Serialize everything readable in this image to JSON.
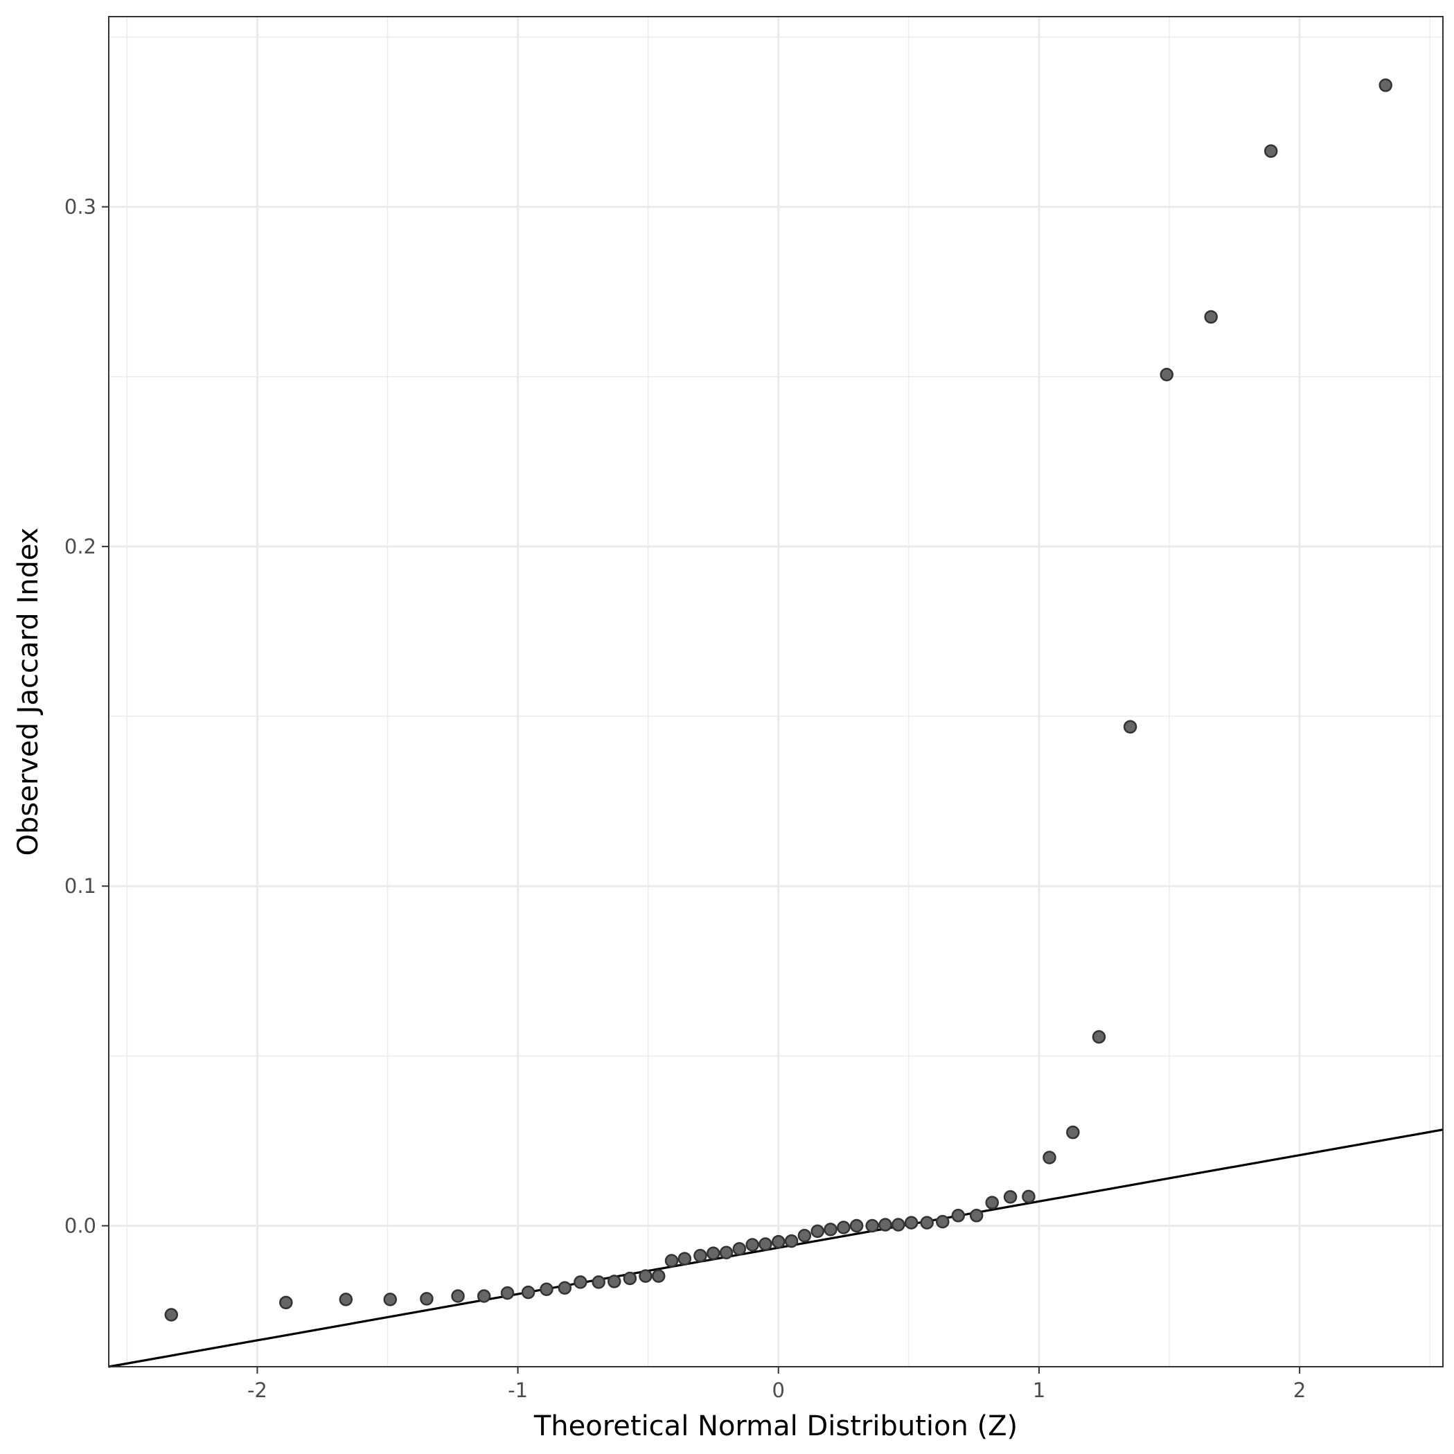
{
  "chart_data": {
    "type": "scatter",
    "title": "",
    "xlabel": "Theoretical Normal Distribution (Z)",
    "ylabel": "Observed Jaccard Index",
    "xlim": [
      -2.57,
      2.55
    ],
    "ylim": [
      -0.0415,
      0.356
    ],
    "x_ticks": [
      -2,
      -1,
      0,
      1,
      2
    ],
    "x_tick_labels": [
      "-2",
      "-1",
      "0",
      "1",
      "2"
    ],
    "y_ticks": [
      0.0,
      0.1,
      0.2,
      0.3
    ],
    "y_tick_labels": [
      "0.0",
      "0.1",
      "0.2",
      "0.3"
    ],
    "grid": true,
    "legend": "none",
    "colors": {
      "point_fill": "#666666",
      "point_stroke": "#333333",
      "reference_line": "#000000",
      "grid": "#ebebeb",
      "panel_border": "#333333"
    },
    "reference_line": {
      "x": [
        -2.57,
        2.55
      ],
      "y": [
        -0.0415,
        0.0283
      ]
    },
    "points": [
      {
        "x": -2.33,
        "y": -0.0262
      },
      {
        "x": -1.89,
        "y": -0.0226
      },
      {
        "x": -1.66,
        "y": -0.0217
      },
      {
        "x": -1.49,
        "y": -0.0217
      },
      {
        "x": -1.35,
        "y": -0.0215
      },
      {
        "x": -1.23,
        "y": -0.0207
      },
      {
        "x": -1.13,
        "y": -0.0207
      },
      {
        "x": -1.04,
        "y": -0.0198
      },
      {
        "x": -0.96,
        "y": -0.0196
      },
      {
        "x": -0.89,
        "y": -0.0187
      },
      {
        "x": -0.82,
        "y": -0.0183
      },
      {
        "x": -0.76,
        "y": -0.0166
      },
      {
        "x": -0.69,
        "y": -0.0166
      },
      {
        "x": -0.63,
        "y": -0.0164
      },
      {
        "x": -0.57,
        "y": -0.0155
      },
      {
        "x": -0.51,
        "y": -0.0148
      },
      {
        "x": -0.46,
        "y": -0.0148
      },
      {
        "x": -0.41,
        "y": -0.0103
      },
      {
        "x": -0.36,
        "y": -0.0097
      },
      {
        "x": -0.3,
        "y": -0.0088
      },
      {
        "x": -0.25,
        "y": -0.0081
      },
      {
        "x": -0.2,
        "y": -0.0079
      },
      {
        "x": -0.15,
        "y": -0.0068
      },
      {
        "x": -0.1,
        "y": -0.0056
      },
      {
        "x": -0.05,
        "y": -0.0054
      },
      {
        "x": 0.0,
        "y": -0.0047
      },
      {
        "x": 0.05,
        "y": -0.0045
      },
      {
        "x": 0.1,
        "y": -0.0029
      },
      {
        "x": 0.15,
        "y": -0.0016
      },
      {
        "x": 0.2,
        "y": -0.0011
      },
      {
        "x": 0.25,
        "y": -0.0005
      },
      {
        "x": 0.3,
        "y": 0.0
      },
      {
        "x": 0.36,
        "y": 0.0
      },
      {
        "x": 0.41,
        "y": 0.0003
      },
      {
        "x": 0.46,
        "y": 0.0003
      },
      {
        "x": 0.51,
        "y": 0.0009
      },
      {
        "x": 0.57,
        "y": 0.0009
      },
      {
        "x": 0.63,
        "y": 0.0012
      },
      {
        "x": 0.69,
        "y": 0.003
      },
      {
        "x": 0.76,
        "y": 0.003
      },
      {
        "x": 0.82,
        "y": 0.0068
      },
      {
        "x": 0.89,
        "y": 0.0085
      },
      {
        "x": 0.96,
        "y": 0.0086
      },
      {
        "x": 1.04,
        "y": 0.0201
      },
      {
        "x": 1.13,
        "y": 0.0275
      },
      {
        "x": 1.23,
        "y": 0.0556
      },
      {
        "x": 1.35,
        "y": 0.1469
      },
      {
        "x": 1.49,
        "y": 0.2506
      },
      {
        "x": 1.66,
        "y": 0.2676
      },
      {
        "x": 1.89,
        "y": 0.3164
      },
      {
        "x": 2.33,
        "y": 0.3358
      }
    ]
  }
}
